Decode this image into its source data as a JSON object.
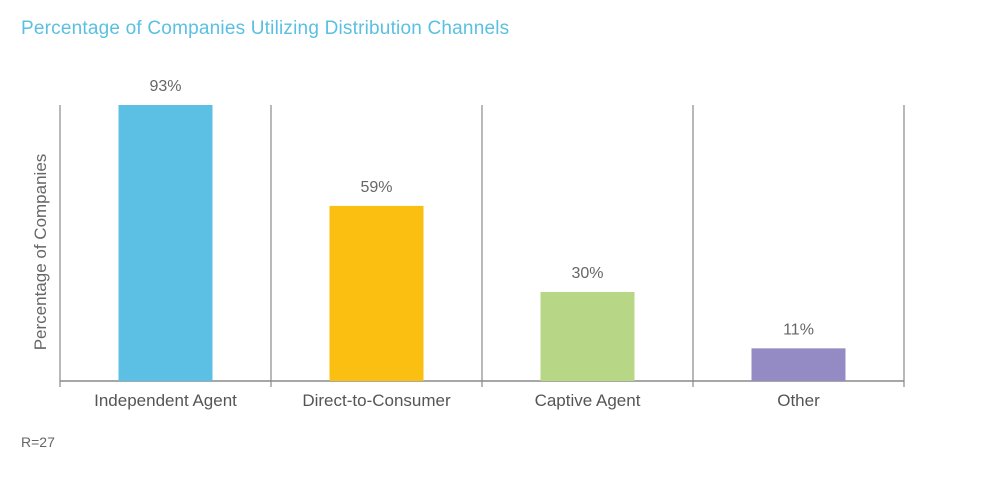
{
  "chart_data": {
    "type": "bar",
    "title": "Percentage of Companies Utilizing Distribution Channels",
    "xlabel": "",
    "ylabel": "Percentage of Companies",
    "categories": [
      "Independent Agent",
      "Direct-to-Consumer",
      "Captive Agent",
      "Other"
    ],
    "values": [
      93,
      59,
      30,
      11
    ],
    "value_labels": [
      "93%",
      "59%",
      "30%",
      "11%"
    ],
    "colors": [
      "#5bc0e3",
      "#fbbf12",
      "#b8d786",
      "#948bc4"
    ],
    "ylim": [
      0,
      100
    ],
    "grid": false,
    "legend": "none"
  },
  "footnote": "R=27"
}
